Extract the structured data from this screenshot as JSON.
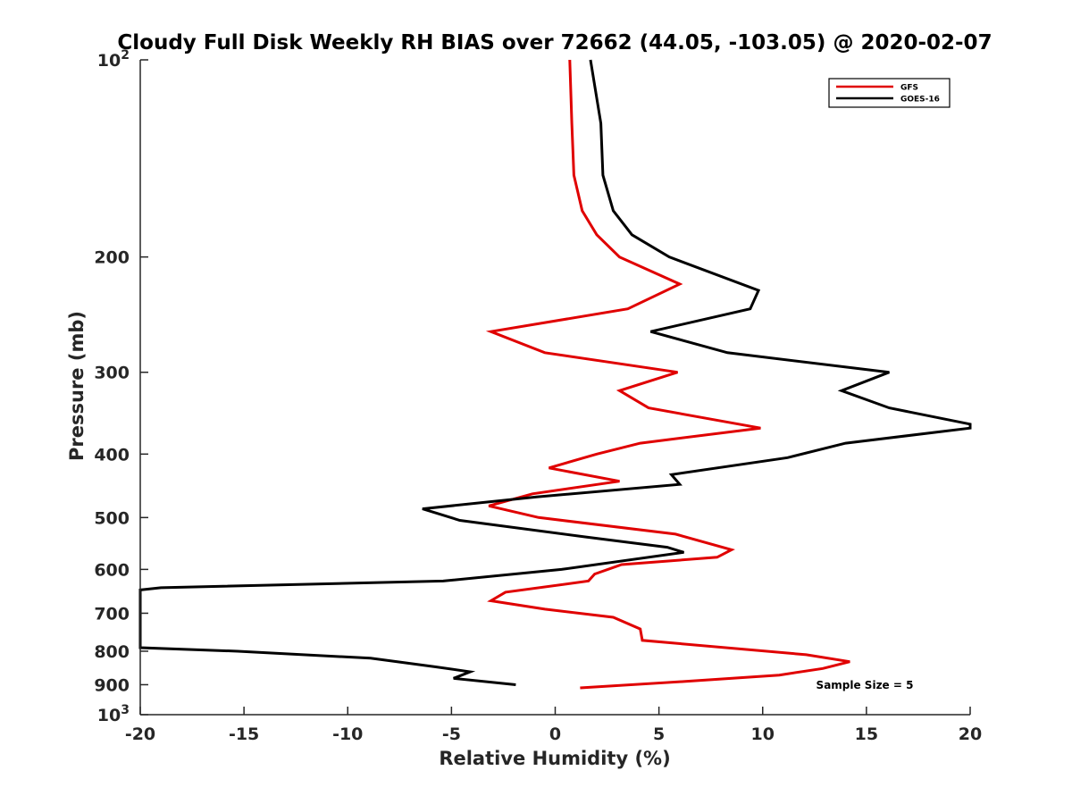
{
  "chart_data": {
    "type": "line",
    "title": "Cloudy Full Disk Weekly RH BIAS over 72662 (44.05, -103.05) @ 2020-02-07",
    "xlabel": "Relative Humidity (%)",
    "ylabel": "Pressure (mb)",
    "xlim": [
      -20,
      20
    ],
    "ylim": [
      100,
      1000
    ],
    "y_scale": "log",
    "y_reversed": true,
    "x_ticks": [
      -20,
      -15,
      -10,
      -5,
      0,
      5,
      10,
      15,
      20
    ],
    "x_tick_labels": [
      "-20",
      "-15",
      "-10",
      "-5",
      "0",
      "5",
      "10",
      "15",
      "20"
    ],
    "y_ticks": [
      {
        "value": 100,
        "base": "10",
        "exp": "2"
      },
      {
        "value": 200,
        "label": "200"
      },
      {
        "value": 300,
        "label": "300"
      },
      {
        "value": 400,
        "label": "400"
      },
      {
        "value": 500,
        "label": "500"
      },
      {
        "value": 600,
        "label": "600"
      },
      {
        "value": 700,
        "label": "700"
      },
      {
        "value": 800,
        "label": "800"
      },
      {
        "value": 900,
        "label": "900"
      },
      {
        "value": 1000,
        "base": "10",
        "exp": "3"
      }
    ],
    "legend_position": "top-right",
    "grid": false,
    "annotation": "Sample Size = 5",
    "series": [
      {
        "name": "GFS",
        "color": "#e00000",
        "points": [
          [
            0.7,
            100
          ],
          [
            0.8,
            125
          ],
          [
            0.9,
            150
          ],
          [
            1.3,
            170
          ],
          [
            2.0,
            185
          ],
          [
            3.1,
            200
          ],
          [
            6.0,
            220
          ],
          [
            3.5,
            240
          ],
          [
            -3.1,
            260
          ],
          [
            -0.5,
            280
          ],
          [
            5.9,
            300
          ],
          [
            3.1,
            320
          ],
          [
            4.5,
            340
          ],
          [
            9.9,
            365
          ],
          [
            4.1,
            385
          ],
          [
            2.0,
            400
          ],
          [
            -0.3,
            420
          ],
          [
            3.1,
            440
          ],
          [
            -1.1,
            460
          ],
          [
            -3.2,
            480
          ],
          [
            -0.8,
            500
          ],
          [
            5.8,
            530
          ],
          [
            8.5,
            560
          ],
          [
            7.8,
            575
          ],
          [
            3.2,
            590
          ],
          [
            1.9,
            610
          ],
          [
            1.6,
            625
          ],
          [
            -2.4,
            650
          ],
          [
            -3.1,
            670
          ],
          [
            -0.5,
            690
          ],
          [
            2.8,
            710
          ],
          [
            4.1,
            740
          ],
          [
            4.2,
            770
          ],
          [
            12.1,
            810
          ],
          [
            14.2,
            830
          ],
          [
            12.9,
            850
          ],
          [
            10.8,
            870
          ],
          [
            6.2,
            890
          ],
          [
            1.2,
            910
          ]
        ]
      },
      {
        "name": "GOES-16",
        "color": "#000000",
        "points": [
          [
            1.7,
            100
          ],
          [
            2.2,
            125
          ],
          [
            2.3,
            150
          ],
          [
            2.8,
            170
          ],
          [
            3.7,
            185
          ],
          [
            5.5,
            200
          ],
          [
            9.8,
            225
          ],
          [
            9.4,
            240
          ],
          [
            4.6,
            260
          ],
          [
            8.3,
            280
          ],
          [
            16.1,
            300
          ],
          [
            13.8,
            320
          ],
          [
            16.1,
            340
          ],
          [
            20.0,
            360
          ],
          [
            20.0,
            365
          ],
          [
            14.0,
            385
          ],
          [
            11.2,
            405
          ],
          [
            5.6,
            430
          ],
          [
            6.0,
            445
          ],
          [
            -0.9,
            465
          ],
          [
            -6.4,
            485
          ],
          [
            -4.6,
            505
          ],
          [
            1.4,
            535
          ],
          [
            5.4,
            555
          ],
          [
            6.2,
            565
          ],
          [
            0.3,
            600
          ],
          [
            -5.4,
            625
          ],
          [
            -19.0,
            640
          ],
          [
            -20.0,
            645
          ],
          [
            -20.0,
            790
          ],
          [
            -15.3,
            800
          ],
          [
            -8.9,
            820
          ],
          [
            -5.8,
            845
          ],
          [
            -4.1,
            860
          ],
          [
            -4.9,
            880
          ],
          [
            -1.9,
            900
          ]
        ]
      }
    ]
  }
}
